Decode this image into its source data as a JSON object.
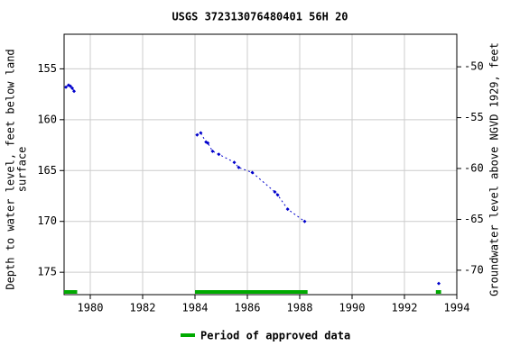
{
  "chart_data": {
    "type": "line",
    "title": "USGS 372313076480401 56H 20",
    "y_label_lines": [
      "Depth to water level, feet below land",
      "surface"
    ],
    "y2_label": "Groundwater level above NGVD 1929, feet",
    "x": [
      1979.07,
      1979.17,
      1979.24,
      1979.31,
      1979.38,
      null,
      1984.08,
      1984.22,
      1984.42,
      1984.49,
      1984.67,
      1984.91,
      1985.5,
      1985.67,
      1986.19,
      1987.05,
      1987.16,
      1987.54,
      1988.19,
      null,
      1993.31
    ],
    "series": [
      {
        "color": "#0000cc",
        "values": [
          156.8,
          156.6,
          156.7,
          156.9,
          157.2,
          null,
          161.5,
          161.3,
          162.2,
          162.3,
          163.1,
          163.4,
          164.2,
          164.7,
          165.2,
          167.1,
          167.4,
          168.8,
          170.0,
          null,
          176.1
        ]
      }
    ],
    "approved_periods": {
      "name": "Period of approved data",
      "color": "#00aa00",
      "ranges": [
        [
          1979.0,
          1979.5
        ],
        [
          1984.0,
          1988.3
        ],
        [
          1993.2,
          1993.4
        ]
      ]
    },
    "xlim": [
      1979.0,
      1994.0
    ],
    "xticks": [
      1980,
      1982,
      1984,
      1986,
      1988,
      1990,
      1992,
      1994
    ],
    "ylim": [
      177.2,
      151.6
    ],
    "yticks": [
      155,
      160,
      165,
      170,
      175
    ],
    "y2lim": [
      -72.4,
      -46.8
    ],
    "y2ticks": [
      -50,
      -55,
      -60,
      -65,
      -70
    ],
    "grid": true
  }
}
